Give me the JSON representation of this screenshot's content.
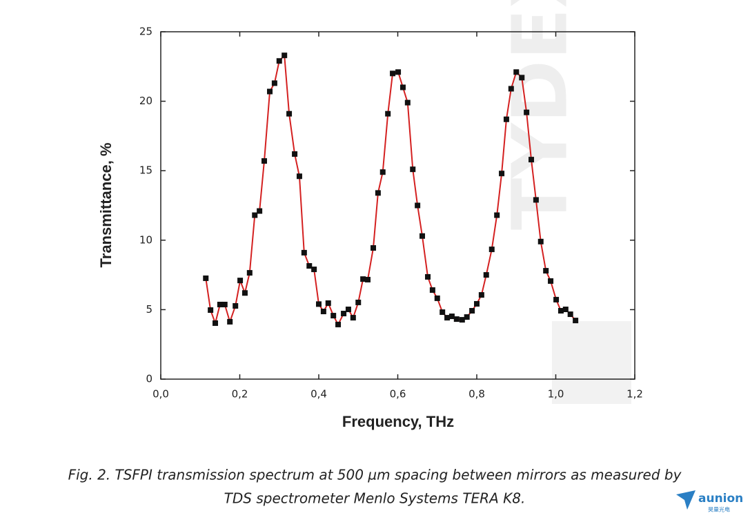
{
  "chart_data": {
    "type": "line",
    "xlabel": "Frequency, THz",
    "ylabel": "Transmittance, %",
    "x": [
      0.114,
      0.126,
      0.138,
      0.15,
      0.162,
      0.175,
      0.189,
      0.201,
      0.213,
      0.225,
      0.238,
      0.25,
      0.262,
      0.276,
      0.288,
      0.3,
      0.313,
      0.325,
      0.339,
      0.351,
      0.363,
      0.376,
      0.388,
      0.4,
      0.412,
      0.424,
      0.437,
      0.449,
      0.463,
      0.475,
      0.487,
      0.5,
      0.512,
      0.524,
      0.538,
      0.55,
      0.562,
      0.575,
      0.587,
      0.601,
      0.613,
      0.625,
      0.638,
      0.65,
      0.662,
      0.676,
      0.688,
      0.7,
      0.713,
      0.725,
      0.737,
      0.749,
      0.763,
      0.775,
      0.788,
      0.8,
      0.812,
      0.824,
      0.838,
      0.851,
      0.863,
      0.875,
      0.887,
      0.9,
      0.914,
      0.926,
      0.938,
      0.95,
      0.962,
      0.975,
      0.987,
      1.001,
      1.013,
      1.025,
      1.037,
      1.05
    ],
    "series": [
      {
        "color": "#d42020",
        "marker_color": "#111111",
        "values": [
          7.26,
          4.97,
          4.03,
          5.37,
          5.37,
          4.13,
          5.27,
          7.1,
          6.2,
          7.65,
          11.8,
          12.1,
          15.7,
          20.7,
          21.3,
          22.9,
          23.3,
          19.1,
          16.2,
          14.6,
          9.1,
          8.15,
          7.9,
          5.4,
          4.87,
          5.47,
          4.57,
          3.93,
          4.72,
          5.02,
          4.42,
          5.52,
          7.2,
          7.16,
          9.44,
          13.4,
          14.9,
          19.1,
          22.0,
          22.1,
          21.0,
          19.9,
          15.1,
          12.5,
          10.3,
          7.36,
          6.41,
          5.82,
          4.82,
          4.42,
          4.52,
          4.32,
          4.27,
          4.47,
          4.92,
          5.42,
          6.06,
          7.5,
          9.34,
          11.8,
          14.8,
          18.7,
          20.9,
          22.1,
          21.7,
          19.2,
          15.8,
          12.9,
          9.9,
          7.8,
          7.06,
          5.72,
          4.92,
          5.02,
          4.67,
          4.22
        ]
      }
    ],
    "xlim": [
      0,
      1.2
    ],
    "xticks": [
      {
        "value": 0,
        "label": "0,0"
      },
      {
        "value": 0.2,
        "label": "0,2"
      },
      {
        "value": 0.4,
        "label": "0,4"
      },
      {
        "value": 0.6,
        "label": "0,6"
      },
      {
        "value": 0.8,
        "label": "0,8"
      },
      {
        "value": 1.0,
        "label": "1,0"
      },
      {
        "value": 1.2,
        "label": "1,2"
      }
    ],
    "ylim": [
      0,
      25
    ],
    "yticks": [
      0,
      5,
      10,
      15,
      20,
      25
    ],
    "grid": false,
    "watermark": "TYDEX"
  },
  "caption": [
    "Fig.  2. TSFPI transmission spectrum at 500 µm spacing between mirrors as measured by",
    "TDS spectrometer Menlo Systems TERA K8."
  ],
  "logo": {
    "name": "aunion",
    "subtitle": "昊量光电"
  }
}
